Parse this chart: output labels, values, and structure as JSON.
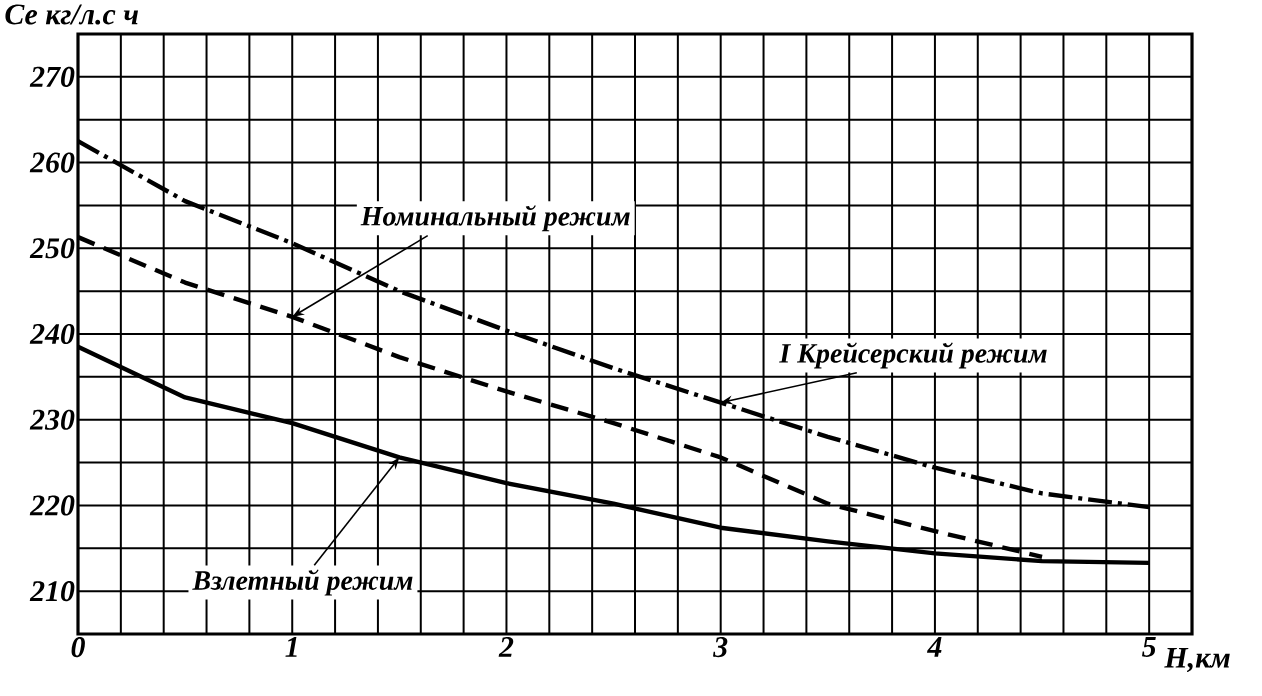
{
  "chart_data": {
    "type": "line",
    "xlabel": "Н,км",
    "ylabel": "Се  кг/л.с ч",
    "xlim": [
      0,
      5.2
    ],
    "ylim": [
      205,
      275
    ],
    "xticks": [
      0,
      1,
      2,
      3,
      4,
      5
    ],
    "yticks": [
      210,
      220,
      230,
      240,
      250,
      260,
      270
    ],
    "grid": true,
    "marker": "none",
    "series": [
      {
        "name": "I Крейсерский режим",
        "color": "#000000",
        "line_style": "dashdot",
        "x": [
          0,
          0.5,
          1,
          1.5,
          2,
          2.5,
          3,
          3.5,
          4,
          4.5,
          5
        ],
        "values": [
          262.5,
          255.5,
          250.6,
          245,
          240.4,
          236,
          232,
          228,
          224.4,
          221.4,
          219.8
        ]
      },
      {
        "name": "Номинальный режим",
        "color": "#000000",
        "line_style": "dashed",
        "x": [
          0,
          0.5,
          1,
          1.5,
          2,
          2.5,
          3,
          3.5,
          4,
          4.5
        ],
        "values": [
          251.3,
          246,
          242,
          237.3,
          233.3,
          229.6,
          225.6,
          220.2,
          217,
          214
        ]
      },
      {
        "name": "Взлетный режим",
        "color": "#000000",
        "line_style": "solid",
        "x": [
          0,
          0.5,
          1,
          1.5,
          2,
          2.5,
          3,
          3.5,
          4,
          4.5,
          5
        ],
        "values": [
          238.5,
          232.6,
          229.6,
          225.6,
          222.6,
          220.2,
          217.4,
          215.8,
          214.4,
          213.5,
          213.3
        ]
      }
    ]
  }
}
